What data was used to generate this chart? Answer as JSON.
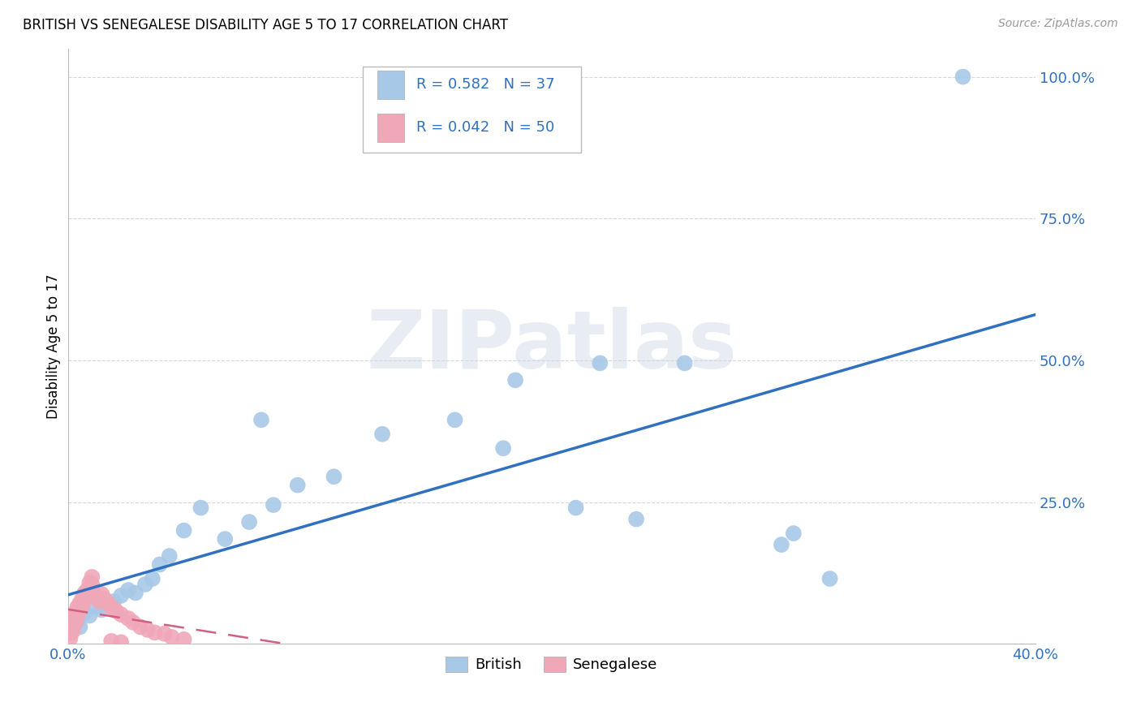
{
  "title": "BRITISH VS SENEGALESE DISABILITY AGE 5 TO 17 CORRELATION CHART",
  "source": "Source: ZipAtlas.com",
  "ylabel": "Disability Age 5 to 17",
  "xlim": [
    0.0,
    0.4
  ],
  "ylim": [
    0.0,
    1.05
  ],
  "british_R": 0.582,
  "british_N": 37,
  "senegalese_R": 0.042,
  "senegalese_N": 50,
  "british_color": "#a8c8e8",
  "british_line_color": "#3070c0",
  "senegalese_color": "#f0a8b8",
  "senegalese_line_color": "#d06080",
  "watermark": "ZIPatlas",
  "grid_color": "#cccccc",
  "brit_x": [
    0.001,
    0.002,
    0.004,
    0.005,
    0.007,
    0.009,
    0.012,
    0.014,
    0.016,
    0.019,
    0.022,
    0.025,
    0.028,
    0.032,
    0.035,
    0.038,
    0.042,
    0.048,
    0.055,
    0.065,
    0.075,
    0.085,
    0.095,
    0.11,
    0.13,
    0.16,
    0.185,
    0.21,
    0.235,
    0.255,
    0.295,
    0.315,
    0.37,
    0.22,
    0.08,
    0.18,
    0.3
  ],
  "brit_y": [
    0.03,
    0.04,
    0.04,
    0.03,
    0.055,
    0.05,
    0.065,
    0.06,
    0.07,
    0.075,
    0.085,
    0.095,
    0.09,
    0.105,
    0.115,
    0.14,
    0.155,
    0.2,
    0.24,
    0.185,
    0.215,
    0.245,
    0.28,
    0.295,
    0.37,
    0.395,
    0.465,
    0.24,
    0.22,
    0.495,
    0.175,
    0.115,
    1.0,
    0.495,
    0.395,
    0.345,
    0.195
  ],
  "sen_x": [
    0.001,
    0.001,
    0.001,
    0.001,
    0.001,
    0.001,
    0.001,
    0.002,
    0.002,
    0.002,
    0.002,
    0.002,
    0.003,
    0.003,
    0.003,
    0.003,
    0.004,
    0.004,
    0.004,
    0.005,
    0.005,
    0.006,
    0.006,
    0.007,
    0.007,
    0.008,
    0.009,
    0.009,
    0.01,
    0.01,
    0.011,
    0.012,
    0.013,
    0.014,
    0.015,
    0.016,
    0.017,
    0.018,
    0.02,
    0.022,
    0.025,
    0.027,
    0.03,
    0.033,
    0.036,
    0.04,
    0.043,
    0.048,
    0.018,
    0.022
  ],
  "sen_y": [
    0.045,
    0.04,
    0.035,
    0.03,
    0.025,
    0.02,
    0.01,
    0.048,
    0.042,
    0.038,
    0.03,
    0.022,
    0.055,
    0.05,
    0.042,
    0.035,
    0.065,
    0.055,
    0.048,
    0.072,
    0.06,
    0.08,
    0.068,
    0.09,
    0.078,
    0.095,
    0.108,
    0.095,
    0.118,
    0.105,
    0.088,
    0.082,
    0.075,
    0.088,
    0.08,
    0.075,
    0.07,
    0.065,
    0.058,
    0.052,
    0.045,
    0.038,
    0.03,
    0.025,
    0.02,
    0.018,
    0.012,
    0.008,
    0.005,
    0.003
  ]
}
